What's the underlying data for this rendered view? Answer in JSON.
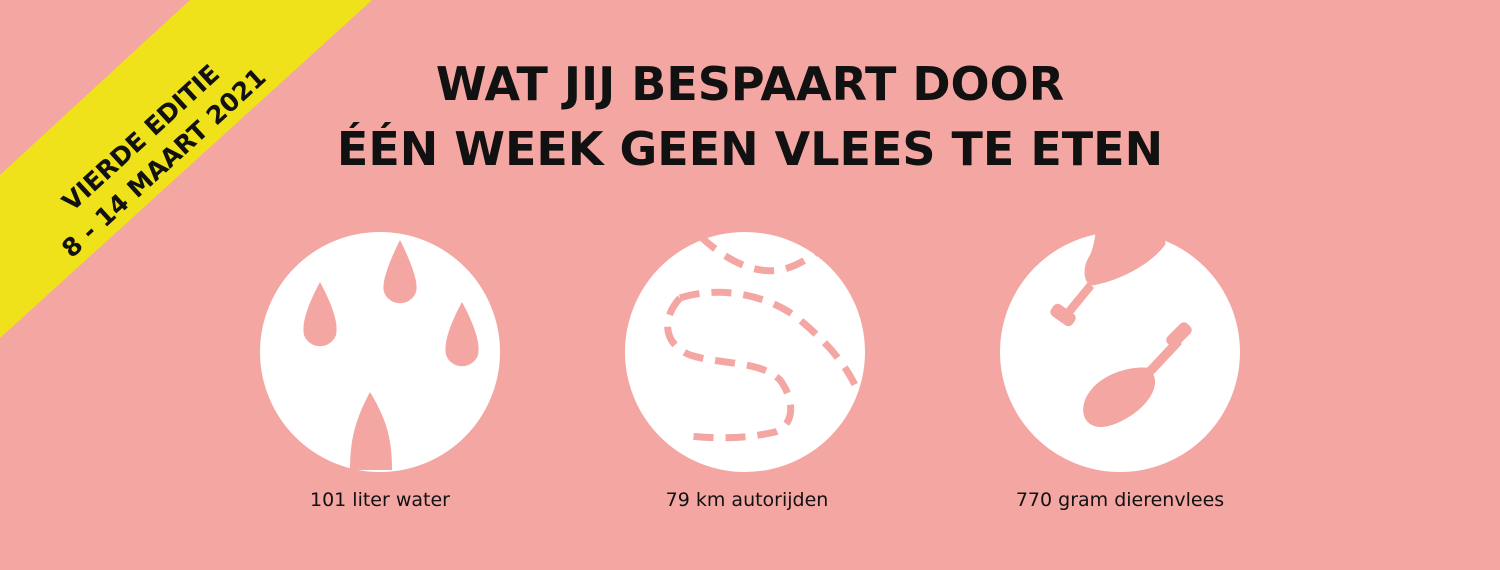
{
  "banner": {
    "lines": [
      "VIERDE EDITIE",
      "8 - 14 MAART 2021"
    ]
  },
  "header": {
    "title": [
      "WAT JIJ BESPAART DOOR",
      "ÉÉN WEEK GEEN VLEES TE ETEN"
    ]
  },
  "items": [
    {
      "label": "101 liter water"
    },
    {
      "label": "79 km autorijden"
    },
    {
      "label": "770 gram dierenvlees"
    }
  ]
}
